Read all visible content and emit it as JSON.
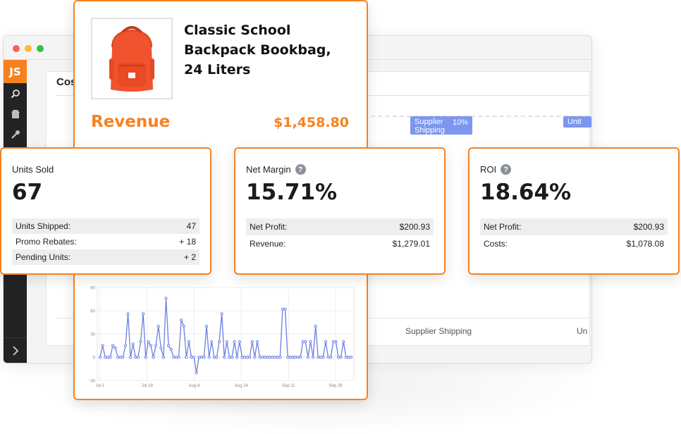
{
  "window": {
    "logo": "JS",
    "panel_title": "Cos",
    "tags": {
      "supplier": "Supplier Shipping",
      "supplier_pct": "10%",
      "unit": "Unit"
    },
    "bottom_labels": {
      "supplier": "Supplier Shipping",
      "unit": "Un"
    }
  },
  "product": {
    "title": "Classic School Backpack Bookbag, 24 Liters",
    "revenue_label": "Revenue",
    "revenue_value": "$1,458.80",
    "image_icon": "backpack-icon",
    "accent": "#f58220"
  },
  "units_sold": {
    "label": "Units Sold",
    "value": "67",
    "rows": [
      {
        "label": "Units Shipped:",
        "value": "47"
      },
      {
        "label": "Promo Rebates:",
        "value": "+ 18"
      },
      {
        "label": "Pending Units:",
        "value": "+ 2"
      }
    ]
  },
  "net_margin": {
    "label": "Net Margin",
    "value": "15.71%",
    "rows": [
      {
        "label": "Net Profit:",
        "value": "$200.93"
      },
      {
        "label": "Revenue:",
        "value": "$1,279.01"
      }
    ]
  },
  "roi": {
    "label": "ROI",
    "value": "18.64%",
    "rows": [
      {
        "label": "Net Profit:",
        "value": "$200.93"
      },
      {
        "label": "Costs:",
        "value": "$1,078.08"
      }
    ]
  },
  "chart_data": {
    "type": "line",
    "x_tick_labels": [
      "Jul 1",
      "Jul 18",
      "Aug 6",
      "Aug 24",
      "Sep 11",
      "Sep 29"
    ],
    "y_tick_labels": [
      "90",
      "60",
      "30",
      "0",
      "-30"
    ],
    "ylim": [
      -30,
      90
    ],
    "grid": true,
    "color": "#6b7fe0",
    "values": [
      0,
      15,
      0,
      0,
      0,
      15,
      12,
      0,
      0,
      0,
      15,
      56,
      0,
      17,
      0,
      0,
      20,
      56,
      0,
      20,
      15,
      0,
      15,
      40,
      12,
      0,
      76,
      15,
      10,
      0,
      0,
      0,
      48,
      40,
      0,
      20,
      0,
      0,
      -20,
      0,
      0,
      0,
      40,
      0,
      20,
      0,
      0,
      20,
      56,
      0,
      20,
      0,
      0,
      20,
      0,
      20,
      0,
      0,
      0,
      0,
      20,
      0,
      20,
      0,
      0,
      0,
      0,
      0,
      0,
      0,
      0,
      0,
      62,
      62,
      0,
      0,
      0,
      0,
      0,
      0,
      20,
      20,
      0,
      20,
      0,
      40,
      0,
      0,
      0,
      20,
      0,
      0,
      20,
      20,
      0,
      0,
      20,
      0,
      0,
      0
    ]
  }
}
